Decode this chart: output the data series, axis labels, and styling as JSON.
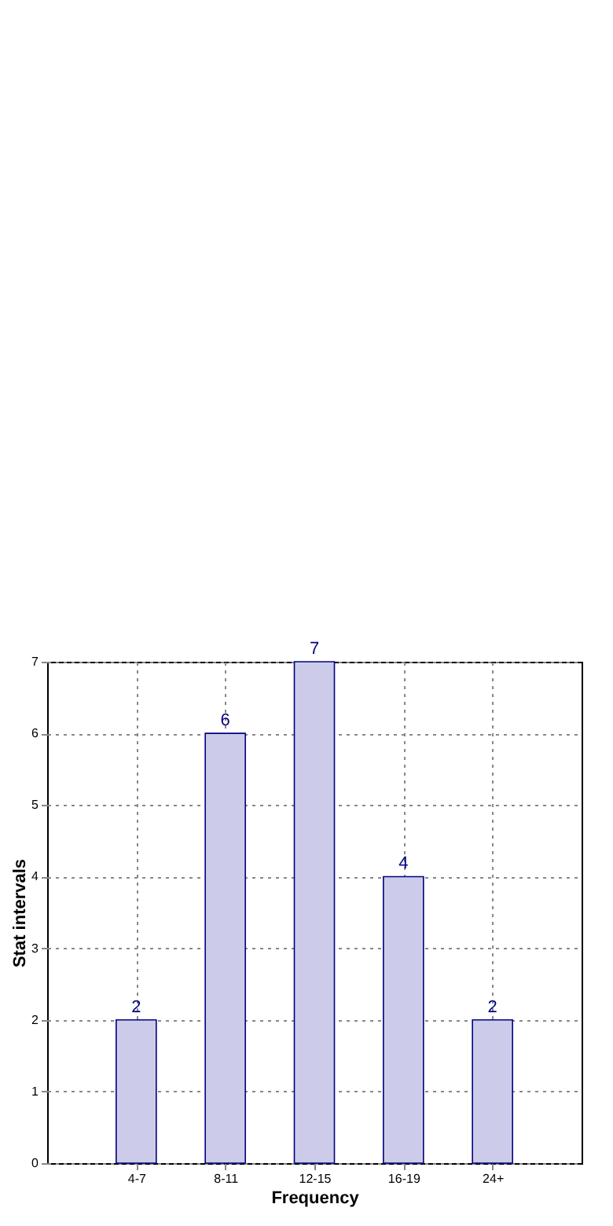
{
  "chart_data": {
    "type": "bar",
    "xlabel": "Frequency",
    "ylabel": "Stat intervals",
    "categories": [
      "4-7",
      "8-11",
      "12-15",
      "16-19",
      "24+"
    ],
    "values": [
      2,
      6,
      7,
      4,
      2
    ],
    "color": "#ccccea",
    "ylim": [
      0,
      7
    ],
    "yticks": [
      0,
      1,
      2,
      3,
      4,
      5,
      6,
      7
    ],
    "grid": true,
    "data_labels": true
  }
}
